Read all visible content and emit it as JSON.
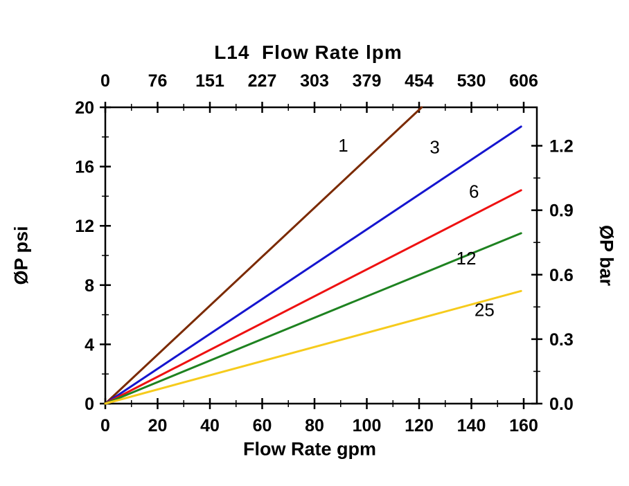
{
  "chart_data": {
    "type": "line",
    "title": "L14  Flow Rate lpm",
    "xlabel": "Flow Rate gpm",
    "ylabel_left": "ØP psi",
    "ylabel_right": "ØP bar",
    "x_axis_bottom_unit": "gpm",
    "x_axis_top_unit": "lpm",
    "xlim_gpm": [
      0,
      165
    ],
    "ylim_psi": [
      0,
      20
    ],
    "psi_per_bar": 14.5038,
    "x_gpm_ticks": [
      0,
      20,
      40,
      60,
      80,
      100,
      120,
      140,
      160
    ],
    "x_lpm_labels": [
      "0",
      "76",
      "151",
      "227",
      "303",
      "379",
      "454",
      "530",
      "606"
    ],
    "y_psi_ticks": [
      0,
      4,
      8,
      12,
      16,
      20
    ],
    "y_bar_ticks": [
      0.0,
      0.3,
      0.6,
      0.9,
      1.2
    ],
    "grid": "off",
    "legend": "inline-labels",
    "series": [
      {
        "name": "1",
        "color": "#7B2A00",
        "points": [
          [
            0,
            0
          ],
          [
            121,
            20.0
          ]
        ],
        "label_at": [
          91,
          17.0
        ]
      },
      {
        "name": "3",
        "color": "#1515CF",
        "points": [
          [
            0,
            0
          ],
          [
            159,
            18.7
          ]
        ],
        "label_at": [
          126,
          16.9
        ]
      },
      {
        "name": "6",
        "color": "#EE1111",
        "points": [
          [
            0,
            0
          ],
          [
            159,
            14.4
          ]
        ],
        "label_at": [
          141,
          13.9
        ]
      },
      {
        "name": "12",
        "color": "#1E8220",
        "points": [
          [
            0,
            0
          ],
          [
            62,
            4.5
          ],
          [
            159,
            11.5
          ]
        ],
        "label_at": [
          138,
          9.4
        ]
      },
      {
        "name": "25",
        "color": "#F6CB1C",
        "points": [
          [
            0,
            0
          ],
          [
            159,
            7.6
          ]
        ],
        "label_at": [
          145,
          5.9
        ]
      }
    ]
  }
}
